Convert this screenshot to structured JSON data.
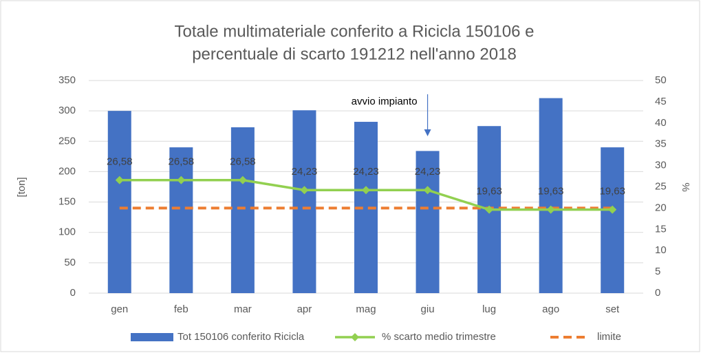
{
  "chart_data": {
    "type": "combo",
    "title": [
      "Totale multimateriale conferito a Ricicla 150106 e",
      "percentuale di scarto 191212 nell'anno 2018"
    ],
    "ylabel": "[ton]",
    "y2label": "%",
    "categories": [
      "gen",
      "feb",
      "mar",
      "apr",
      "mag",
      "giu",
      "lug",
      "ago",
      "set"
    ],
    "series": [
      {
        "name": "Tot 150106 conferito Ricicla",
        "type": "bar",
        "color": "#4472c4",
        "axis": "y",
        "values": [
          300,
          240,
          273,
          301,
          282,
          234,
          275,
          321,
          240
        ]
      },
      {
        "name": "% scarto medio trimestre",
        "type": "line",
        "color": "#92d050",
        "axis": "y2",
        "values": [
          26.58,
          26.58,
          26.58,
          24.23,
          24.23,
          24.23,
          19.63,
          19.63,
          19.63
        ],
        "value_labels": [
          "26,58",
          "26,58",
          "26,58",
          "24,23",
          "24,23",
          "24,23",
          "19,63",
          "19,63",
          "19,63"
        ]
      },
      {
        "name": "limite",
        "type": "dashed",
        "color": "#ed7d31",
        "axis": "y2",
        "values": [
          20,
          20,
          20,
          20,
          20,
          20,
          20,
          20,
          20
        ]
      }
    ],
    "annotation": {
      "text": "avvio impianto",
      "category": 5
    },
    "ylim": [
      0,
      350
    ],
    "yticks": [
      0,
      50,
      100,
      150,
      200,
      250,
      300,
      350
    ],
    "y2lim": [
      0,
      50
    ],
    "y2ticks": [
      0,
      5,
      10,
      15,
      20,
      25,
      30,
      35,
      40,
      45,
      50
    ],
    "grid": true
  }
}
